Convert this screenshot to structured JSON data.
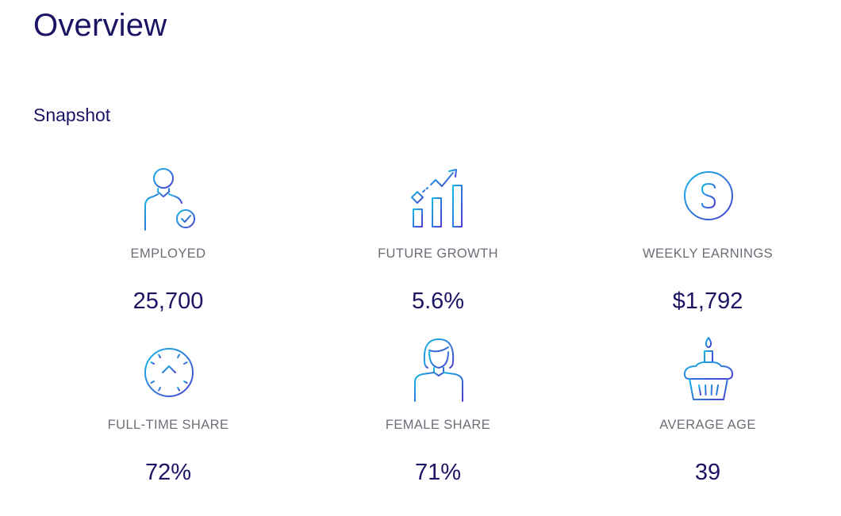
{
  "page": {
    "title": "Overview"
  },
  "snapshot": {
    "title": "Snapshot",
    "stats": [
      {
        "icon": "employed-person-icon",
        "label": "EMPLOYED",
        "value": "25,700"
      },
      {
        "icon": "growth-chart-icon",
        "label": "FUTURE GROWTH",
        "value": "5.6%"
      },
      {
        "icon": "dollar-coin-icon",
        "label": "WEEKLY EARNINGS",
        "value": "$1,792"
      },
      {
        "icon": "clock-icon",
        "label": "FULL-TIME SHARE",
        "value": "72%"
      },
      {
        "icon": "woman-icon",
        "label": "FEMALE SHARE",
        "value": "71%"
      },
      {
        "icon": "birthday-cupcake-icon",
        "label": "AVERAGE AGE",
        "value": "39"
      }
    ]
  },
  "colors": {
    "heading": "#1b1464",
    "label": "#6d6d78",
    "icon_gradient_start": "#14b8e6",
    "icon_gradient_end": "#4a3fd1"
  }
}
